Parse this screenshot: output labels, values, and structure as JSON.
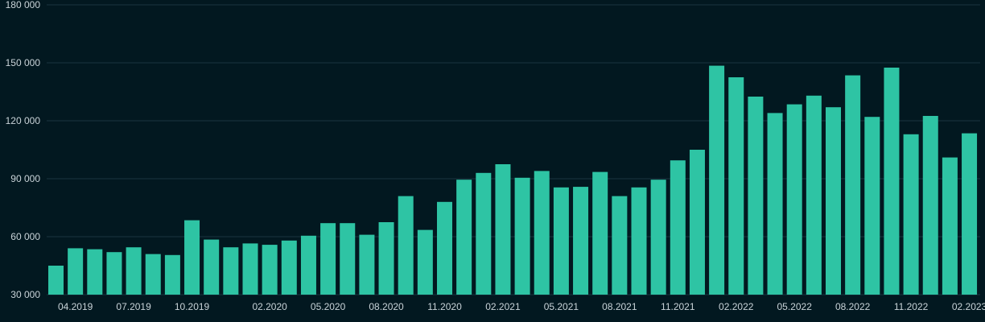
{
  "chart_data": {
    "type": "bar",
    "title": "",
    "xlabel": "",
    "ylabel": "",
    "ylim": [
      30000,
      180000
    ],
    "y_ticks": [
      30000,
      60000,
      90000,
      120000,
      150000,
      180000
    ],
    "y_tick_labels": [
      "30 000",
      "60 000",
      "90 000",
      "120 000",
      "150 000",
      "180 000"
    ],
    "grid": true,
    "legend": "none",
    "bar_color": "#2ec4a4",
    "background": "#021820",
    "x_ticks": [
      {
        "index": 1,
        "label": "04.2019"
      },
      {
        "index": 4,
        "label": "07.2019"
      },
      {
        "index": 7,
        "label": "10.2019"
      },
      {
        "index": 11,
        "label": "02.2020"
      },
      {
        "index": 14,
        "label": "05.2020"
      },
      {
        "index": 17,
        "label": "08.2020"
      },
      {
        "index": 20,
        "label": "11.2020"
      },
      {
        "index": 23,
        "label": "02.2021"
      },
      {
        "index": 26,
        "label": "05.2021"
      },
      {
        "index": 29,
        "label": "08.2021"
      },
      {
        "index": 32,
        "label": "11.2021"
      },
      {
        "index": 35,
        "label": "02.2022"
      },
      {
        "index": 38,
        "label": "05.2022"
      },
      {
        "index": 41,
        "label": "08.2022"
      },
      {
        "index": 44,
        "label": "11.2022"
      },
      {
        "index": 47,
        "label": "02.2023"
      }
    ],
    "categories": [
      "03.2019",
      "04.2019",
      "05.2019",
      "06.2019",
      "07.2019",
      "08.2019",
      "09.2019",
      "10.2019",
      "11.2019",
      "12.2019",
      "01.2020",
      "02.2020",
      "03.2020",
      "04.2020",
      "05.2020",
      "06.2020",
      "07.2020",
      "08.2020",
      "09.2020",
      "10.2020",
      "11.2020",
      "12.2020",
      "01.2021",
      "02.2021",
      "03.2021",
      "04.2021",
      "05.2021",
      "06.2021",
      "07.2021",
      "08.2021",
      "09.2021",
      "10.2021",
      "11.2021",
      "12.2021",
      "01.2022",
      "02.2022",
      "03.2022",
      "04.2022",
      "05.2022",
      "06.2022",
      "07.2022",
      "08.2022",
      "09.2022",
      "10.2022",
      "11.2022",
      "12.2022",
      "01.2023",
      "02.2023"
    ],
    "values": [
      45000,
      54000,
      53500,
      52000,
      54500,
      51000,
      50500,
      68500,
      58500,
      54500,
      56500,
      55800,
      58000,
      60500,
      67000,
      67000,
      61000,
      67500,
      81000,
      63500,
      78000,
      89500,
      93000,
      97500,
      90500,
      94000,
      85500,
      85800,
      93500,
      81000,
      85500,
      89500,
      99500,
      105000,
      148500,
      142500,
      132500,
      124000,
      128500,
      133000,
      127000,
      143500,
      122000,
      147500,
      113000,
      122500,
      101000,
      113500
    ]
  }
}
